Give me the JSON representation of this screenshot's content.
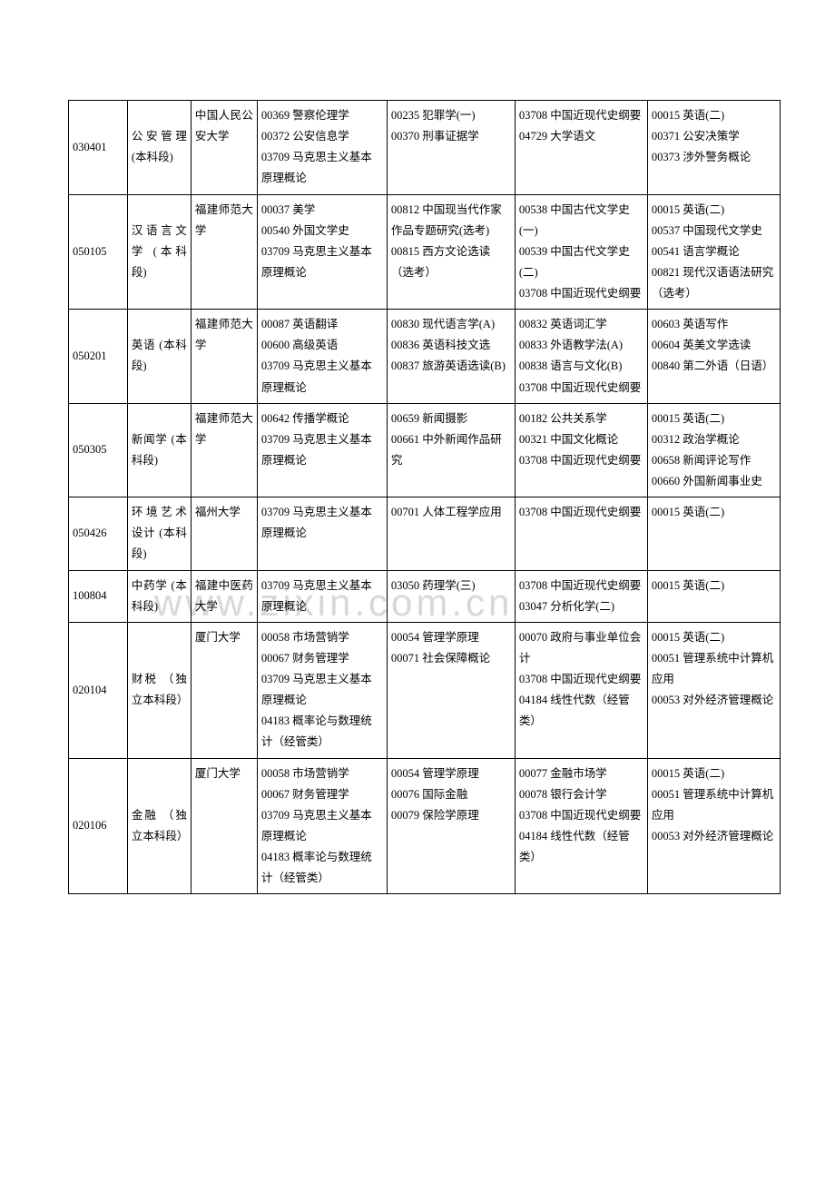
{
  "rows": [
    {
      "code": "030401",
      "major": "公安管理 (本科段)",
      "school": "中国人民公安大学",
      "c1": "00369 警察伦理学\n00372 公安信息学\n03709 马克思主义基本原理概论",
      "c2": "00235 犯罪学(一)\n00370 刑事证据学",
      "c3": "03708 中国近现代史纲要\n04729 大学语文",
      "c4": "00015 英语(二)\n00371 公安决策学\n00373 涉外警务概论"
    },
    {
      "code": "050105",
      "major": "汉语言文学 (本科段)",
      "school": "福建师范大学",
      "c1": "00037 美学\n00540 外国文学史\n03709 马克思主义基本原理概论",
      "c2": "00812 中国现当代作家作品专题研究(选考)\n00815 西方文论选读（选考）",
      "c3": "00538 中国古代文学史(一)\n00539 中国古代文学史(二)\n03708 中国近现代史纲要",
      "c4": "00015 英语(二)\n00537 中国现代文学史\n00541 语言学概论\n00821 现代汉语语法研究（选考）"
    },
    {
      "code": "050201",
      "major": "英语 (本科段)",
      "school": "福建师范大学",
      "c1": "00087 英语翻译\n00600 高级英语\n03709 马克思主义基本原理概论",
      "c2": "00830 现代语言学(A)\n00836 英语科技文选\n00837 旅游英语选读(B)",
      "c3": "00832 英语词汇学\n00833 外语教学法(A)\n00838 语言与文化(B)\n03708 中国近现代史纲要",
      "c4": "00603 英语写作\n00604 英美文学选读\n00840 第二外语（日语）"
    },
    {
      "code": "050305",
      "major": "新闻学 (本科段)",
      "school": "福建师范大学",
      "c1": "00642 传播学概论\n03709 马克思主义基本原理概论",
      "c2": "00659 新闻摄影\n00661 中外新闻作品研究",
      "c3": "00182 公共关系学\n00321 中国文化概论\n03708 中国近现代史纲要",
      "c4": "00015 英语(二)\n00312 政治学概论\n00658 新闻评论写作\n00660 外国新闻事业史"
    },
    {
      "code": "050426",
      "major": "环境艺术设计 (本科段)",
      "school": "福州大学",
      "c1": "03709 马克思主义基本原理概论",
      "c2": "00701 人体工程学应用",
      "c3": "03708 中国近现代史纲要",
      "c4": "00015 英语(二)"
    },
    {
      "code": "100804",
      "major": "中药学 (本科段)",
      "school": "福建中医药大学",
      "c1": "03709 马克思主义基本原理概论",
      "c2": "03050 药理学(三)",
      "c3": "03708 中国近现代史纲要\n03047 分析化学(二)",
      "c4": "00015 英语(二)"
    },
    {
      "code": "020104",
      "major": "财税 （独立本科段）",
      "school": "厦门大学",
      "c1": "00058 市场营销学\n00067 财务管理学\n03709 马克思主义基本原理概论\n04183 概率论与数理统计（经管类）",
      "c2": "00054 管理学原理\n00071 社会保障概论",
      "c3": "00070 政府与事业单位会计\n03708 中国近现代史纲要\n04184 线性代数（经管类）",
      "c4": "00015 英语(二)\n00051 管理系统中计算机应用\n00053 对外经济管理概论"
    },
    {
      "code": "020106",
      "major": "金融 （独立本科段）",
      "school": "厦门大学",
      "c1": "00058 市场营销学\n00067 财务管理学\n03709 马克思主义基本原理概论\n04183 概率论与数理统计（经管类）",
      "c2": "00054 管理学原理\n00076 国际金融\n00079 保险学原理",
      "c3": "00077 金融市场学\n00078 银行会计学\n03708 中国近现代史纲要\n04184 线性代数（经管类）",
      "c4": "00015 英语(二)\n00051 管理系统中计算机应用\n00053 对外经济管理概论"
    }
  ],
  "watermark": "www.zixin.com.cn"
}
